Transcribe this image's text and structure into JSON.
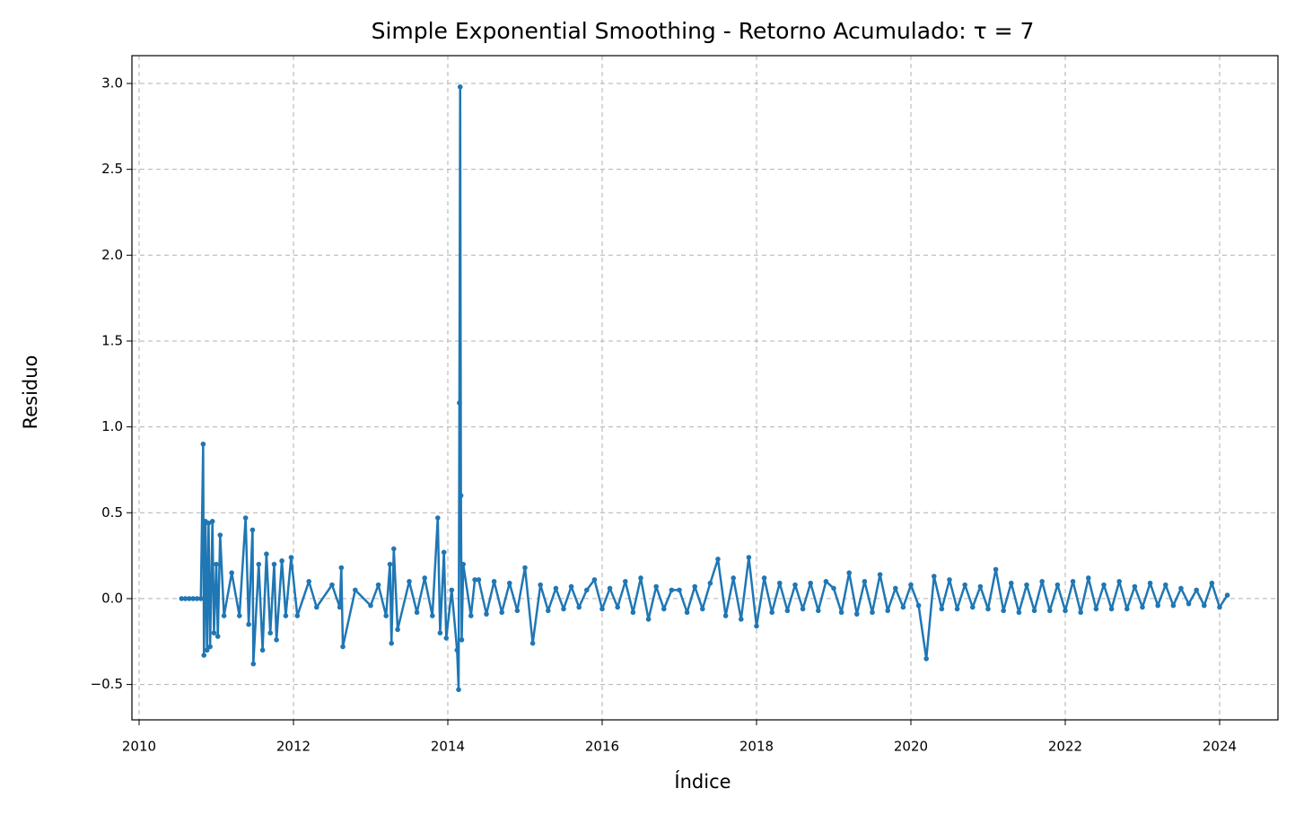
{
  "chart_data": {
    "type": "line",
    "title": "Simple Exponential Smoothing - Retorno Acumulado: τ = 7",
    "x_label": "Índice",
    "y_label": "Residuo",
    "xlim": [
      2009.907,
      2024.756
    ],
    "ylim": [
      -0.706,
      3.162
    ],
    "xticks": [
      2010,
      2012,
      2014,
      2016,
      2018,
      2020,
      2022,
      2024
    ],
    "yticks": [
      {
        "value": -0.5,
        "label": "−0.5"
      },
      {
        "value": 0.0,
        "label": "0.0"
      },
      0.5,
      {
        "value": 1.0,
        "label": "1.0"
      },
      1.5,
      {
        "value": 2.0,
        "label": "2.0"
      },
      2.5,
      {
        "value": 3.0,
        "label": "3.0"
      }
    ],
    "grid": true,
    "series": [
      {
        "color": "#1f77b4",
        "x": [
          2010.55,
          2010.6,
          2010.65,
          2010.7,
          2010.75,
          2010.8,
          2010.83,
          2010.84,
          2010.86,
          2010.88,
          2010.9,
          2010.92,
          2010.95,
          2010.97,
          2011.0,
          2011.02,
          2011.05,
          2011.1,
          2011.2,
          2011.3,
          2011.38,
          2011.42,
          2011.47,
          2011.48,
          2011.55,
          2011.6,
          2011.65,
          2011.7,
          2011.75,
          2011.78,
          2011.85,
          2011.9,
          2011.97,
          2012.05,
          2012.2,
          2012.3,
          2012.5,
          2012.6,
          2012.62,
          2012.64,
          2012.8,
          2013.0,
          2013.1,
          2013.2,
          2013.25,
          2013.27,
          2013.3,
          2013.35,
          2013.5,
          2013.6,
          2013.7,
          2013.8,
          2013.87,
          2013.9,
          2013.95,
          2013.98,
          2014.05,
          2014.12,
          2014.14,
          2014.15,
          2014.16,
          2014.17,
          2014.18,
          2014.2,
          2014.3,
          2014.35,
          2014.4,
          2014.5,
          2014.6,
          2014.7,
          2014.8,
          2014.9,
          2015.0,
          2015.1,
          2015.2,
          2015.3,
          2015.4,
          2015.5,
          2015.6,
          2015.7,
          2015.8,
          2015.9,
          2016.0,
          2016.1,
          2016.2,
          2016.3,
          2016.4,
          2016.5,
          2016.6,
          2016.7,
          2016.8,
          2016.9,
          2017.0,
          2017.1,
          2017.2,
          2017.3,
          2017.4,
          2017.5,
          2017.6,
          2017.7,
          2017.8,
          2017.9,
          2018.0,
          2018.1,
          2018.2,
          2018.3,
          2018.4,
          2018.5,
          2018.6,
          2018.7,
          2018.8,
          2018.9,
          2019.0,
          2019.1,
          2019.2,
          2019.3,
          2019.4,
          2019.5,
          2019.6,
          2019.7,
          2019.8,
          2019.9,
          2020.0,
          2020.1,
          2020.2,
          2020.3,
          2020.4,
          2020.5,
          2020.6,
          2020.7,
          2020.8,
          2020.9,
          2021.0,
          2021.1,
          2021.2,
          2021.3,
          2021.4,
          2021.5,
          2021.6,
          2021.7,
          2021.8,
          2021.9,
          2022.0,
          2022.1,
          2022.2,
          2022.3,
          2022.4,
          2022.5,
          2022.6,
          2022.7,
          2022.8,
          2022.9,
          2023.0,
          2023.1,
          2023.2,
          2023.3,
          2023.4,
          2023.5,
          2023.6,
          2023.7,
          2023.8,
          2023.9,
          2024.0,
          2024.1
        ],
        "values": [
          0,
          0,
          0,
          0,
          0,
          0,
          0.9,
          -0.33,
          0.45,
          -0.3,
          0.44,
          -0.28,
          0.45,
          -0.2,
          0.2,
          -0.22,
          0.37,
          -0.1,
          0.15,
          -0.1,
          0.47,
          -0.15,
          0.4,
          -0.38,
          0.2,
          -0.3,
          0.26,
          -0.2,
          0.2,
          -0.24,
          0.22,
          -0.1,
          0.24,
          -0.1,
          0.1,
          -0.05,
          0.08,
          -0.05,
          0.18,
          -0.28,
          0.05,
          -0.04,
          0.08,
          -0.1,
          0.2,
          -0.26,
          0.29,
          -0.18,
          0.1,
          -0.08,
          0.12,
          -0.1,
          0.47,
          -0.2,
          0.27,
          -0.23,
          0.05,
          -0.3,
          -0.53,
          1.14,
          2.98,
          0.6,
          -0.24,
          0.2,
          -0.1,
          0.11,
          0.11,
          -0.09,
          0.1,
          -0.08,
          0.09,
          -0.07,
          0.18,
          -0.26,
          0.08,
          -0.07,
          0.06,
          -0.06,
          0.07,
          -0.05,
          0.05,
          0.11,
          -0.06,
          0.06,
          -0.05,
          0.1,
          -0.08,
          0.12,
          -0.12,
          0.07,
          -0.06,
          0.05,
          0.05,
          -0.08,
          0.07,
          -0.06,
          0.09,
          0.23,
          -0.1,
          0.12,
          -0.12,
          0.24,
          -0.16,
          0.12,
          -0.08,
          0.09,
          -0.07,
          0.08,
          -0.06,
          0.09,
          -0.07,
          0.1,
          0.06,
          -0.08,
          0.15,
          -0.09,
          0.1,
          -0.08,
          0.14,
          -0.07,
          0.06,
          -0.05,
          0.08,
          -0.04,
          -0.35,
          0.13,
          -0.06,
          0.11,
          -0.06,
          0.08,
          -0.05,
          0.07,
          -0.06,
          0.17,
          -0.07,
          0.09,
          -0.08,
          0.08,
          -0.07,
          0.1,
          -0.07,
          0.08,
          -0.07,
          0.1,
          -0.08,
          0.12,
          -0.06,
          0.08,
          -0.06,
          0.1,
          -0.06,
          0.07,
          -0.05,
          0.09,
          -0.04,
          0.08,
          -0.04,
          0.06,
          -0.03,
          0.05,
          -0.04,
          0.09,
          -0.05,
          0.02
        ]
      }
    ]
  }
}
